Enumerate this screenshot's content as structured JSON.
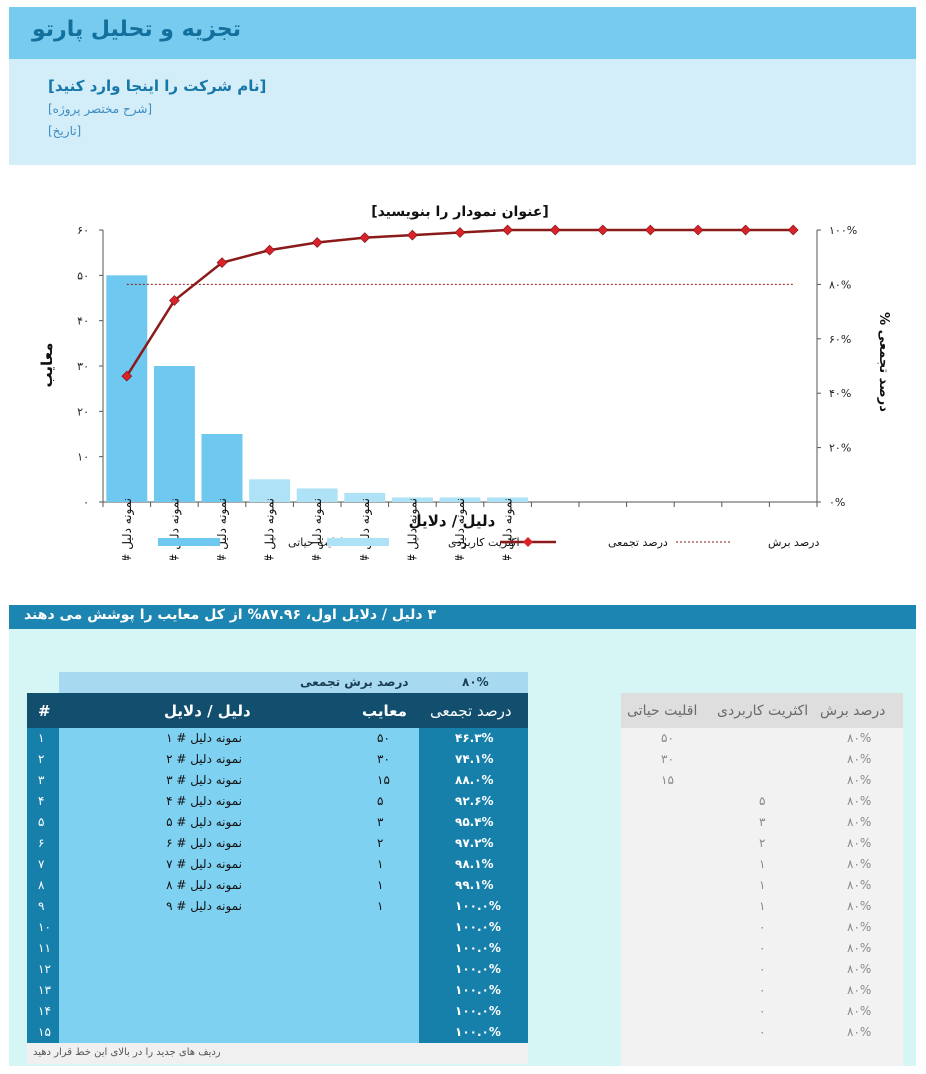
{
  "header": {
    "title": "تجزیه و تحلیل پارتو",
    "company": "[نام شرکت را اینجا وارد کنید]",
    "project": "[شرح مختصر پروژه]",
    "date": "[تاریخ]"
  },
  "colors": {
    "header_band": "#77cbef",
    "info_band": "#d3eef9",
    "vital_bar": "#6ec8ef",
    "useful_bar": "#aee2f6",
    "cumulative_line": "#8b1a1a",
    "marker": "#d8232a",
    "summary_band": "#1d85b1",
    "table_header": "#124f6f"
  },
  "chart_data": {
    "type": "bar",
    "title": "[عنوان نمودار را بنویسید]",
    "xlabel": "دلیل / دلایل",
    "ylabel": "معایب",
    "y2label": "% درصد تجمعی",
    "ylim": [
      0,
      60
    ],
    "y2lim": [
      0,
      100
    ],
    "yticks": [
      "۰",
      "۱۰",
      "۲۰",
      "۳۰",
      "۴۰",
      "۵۰",
      "۶۰"
    ],
    "y2ticks": [
      "۰%",
      "۲۰%",
      "۴۰%",
      "۶۰%",
      "۸۰%",
      "۱۰۰%"
    ],
    "categories": [
      "نمونه دلیل # ۱",
      "نمونه دلیل # ۲",
      "نمونه دلیل # ۳",
      "نمونه دلیل # ۴",
      "نمونه دلیل # ۵",
      "نمونه دلیل # ۶",
      "نمونه دلیل # ۷",
      "نمونه دلیل # ۸",
      "نمونه دلیل # ۹",
      "",
      "",
      "",
      "",
      "",
      ""
    ],
    "defects": [
      50,
      30,
      15,
      5,
      3,
      2,
      1,
      1,
      1,
      0,
      0,
      0,
      0,
      0,
      0
    ],
    "vital_few_count": 3,
    "cumulative_pct": [
      46.3,
      74.1,
      88.0,
      92.6,
      95.4,
      97.2,
      98.1,
      99.1,
      100,
      100,
      100,
      100,
      100,
      100,
      100
    ],
    "cutoff_pct": 80,
    "legend": [
      "اقلیت حیاتی",
      "اکثریت کاربردی",
      "درصد تجمعی",
      "درصد برش"
    ],
    "grid": false,
    "legend_position": "bottom"
  },
  "summary": {
    "text": "۳ دلیل / دلایل اول، ۸۷.۹۶% از کل معایب  را پوشش می دهند"
  },
  "cutoff": {
    "label": "درصد برش تجمعی",
    "value": "۸۰%"
  },
  "table": {
    "headers": {
      "num": "#",
      "cause": "دلیل / دلایل",
      "defects": "معایب",
      "cumulative": "درصد تجمعی"
    },
    "rows": [
      {
        "num": "۱",
        "cause": "نمونه دلیل # ۱",
        "defects": "۵۰",
        "pct": "۴۶.۳%"
      },
      {
        "num": "۲",
        "cause": "نمونه دلیل # ۲",
        "defects": "۳۰",
        "pct": "۷۴.۱%"
      },
      {
        "num": "۳",
        "cause": "نمونه دلیل # ۳",
        "defects": "۱۵",
        "pct": "۸۸.۰%"
      },
      {
        "num": "۴",
        "cause": "نمونه دلیل # ۴",
        "defects": "۵",
        "pct": "۹۲.۶%"
      },
      {
        "num": "۵",
        "cause": "نمونه دلیل # ۵",
        "defects": "۳",
        "pct": "۹۵.۴%"
      },
      {
        "num": "۶",
        "cause": "نمونه دلیل # ۶",
        "defects": "۲",
        "pct": "۹۷.۲%"
      },
      {
        "num": "۷",
        "cause": "نمونه دلیل # ۷",
        "defects": "۱",
        "pct": "۹۸.۱%"
      },
      {
        "num": "۸",
        "cause": "نمونه دلیل # ۸",
        "defects": "۱",
        "pct": "۹۹.۱%"
      },
      {
        "num": "۹",
        "cause": "نمونه دلیل # ۹",
        "defects": "۱",
        "pct": "۱۰۰.۰%"
      },
      {
        "num": "۱۰",
        "cause": "",
        "defects": "",
        "pct": "۱۰۰.۰%"
      },
      {
        "num": "۱۱",
        "cause": "",
        "defects": "",
        "pct": "۱۰۰.۰%"
      },
      {
        "num": "۱۲",
        "cause": "",
        "defects": "",
        "pct": "۱۰۰.۰%"
      },
      {
        "num": "۱۳",
        "cause": "",
        "defects": "",
        "pct": "۱۰۰.۰%"
      },
      {
        "num": "۱۴",
        "cause": "",
        "defects": "",
        "pct": "۱۰۰.۰%"
      },
      {
        "num": "۱۵",
        "cause": "",
        "defects": "",
        "pct": "۱۰۰.۰%"
      }
    ],
    "note": "ردیف های جدید را در بالای این خط قرار دهید"
  },
  "helper": {
    "headers": {
      "cut": "درصد برش",
      "useful": "اکثریت کاربردی",
      "vital": "اقلیت حیاتی"
    },
    "rows": [
      {
        "vital": "۵۰",
        "useful": "",
        "cut": "۸۰%"
      },
      {
        "vital": "۳۰",
        "useful": "",
        "cut": "۸۰%"
      },
      {
        "vital": "۱۵",
        "useful": "",
        "cut": "۸۰%"
      },
      {
        "vital": "",
        "useful": "۵",
        "cut": "۸۰%"
      },
      {
        "vital": "",
        "useful": "۳",
        "cut": "۸۰%"
      },
      {
        "vital": "",
        "useful": "۲",
        "cut": "۸۰%"
      },
      {
        "vital": "",
        "useful": "۱",
        "cut": "۸۰%"
      },
      {
        "vital": "",
        "useful": "۱",
        "cut": "۸۰%"
      },
      {
        "vital": "",
        "useful": "۱",
        "cut": "۸۰%"
      },
      {
        "vital": "",
        "useful": "۰",
        "cut": "۸۰%"
      },
      {
        "vital": "",
        "useful": "۰",
        "cut": "۸۰%"
      },
      {
        "vital": "",
        "useful": "۰",
        "cut": "۸۰%"
      },
      {
        "vital": "",
        "useful": "۰",
        "cut": "۸۰%"
      },
      {
        "vital": "",
        "useful": "۰",
        "cut": "۸۰%"
      },
      {
        "vital": "",
        "useful": "۰",
        "cut": "۸۰%"
      }
    ]
  }
}
